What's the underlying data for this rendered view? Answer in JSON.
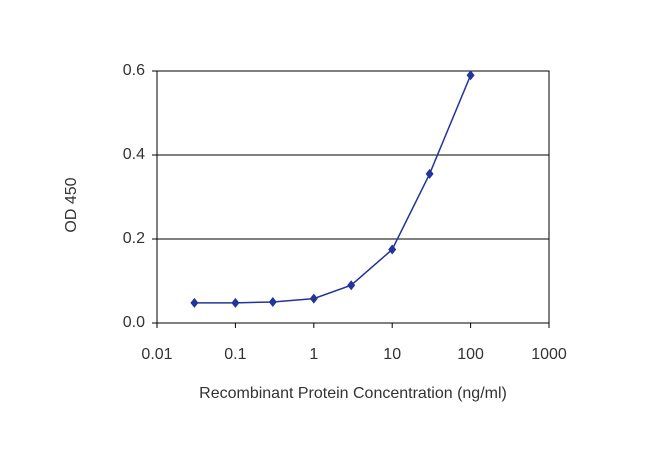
{
  "chart_data": {
    "type": "line",
    "x_label": "Recombinant Protein Concentration (ng/ml)",
    "y_label": "OD 450",
    "x_scale": "log",
    "grid": true,
    "xlim": [
      0.01,
      1000
    ],
    "xticks": [
      0.01,
      0.1,
      1,
      10,
      100,
      1000
    ],
    "ylim": [
      0,
      0.6
    ],
    "yticks": [
      {
        "value": 0,
        "label": "0.0"
      },
      0.2,
      0.4,
      0.6
    ],
    "series": [
      {
        "color": "#23349a",
        "x": [
          0.03,
          0.1,
          0.3,
          1,
          3,
          10,
          30,
          100
        ],
        "values": [
          0.048,
          0.048,
          0.05,
          0.058,
          0.09,
          0.175,
          0.355,
          0.59
        ]
      }
    ]
  }
}
